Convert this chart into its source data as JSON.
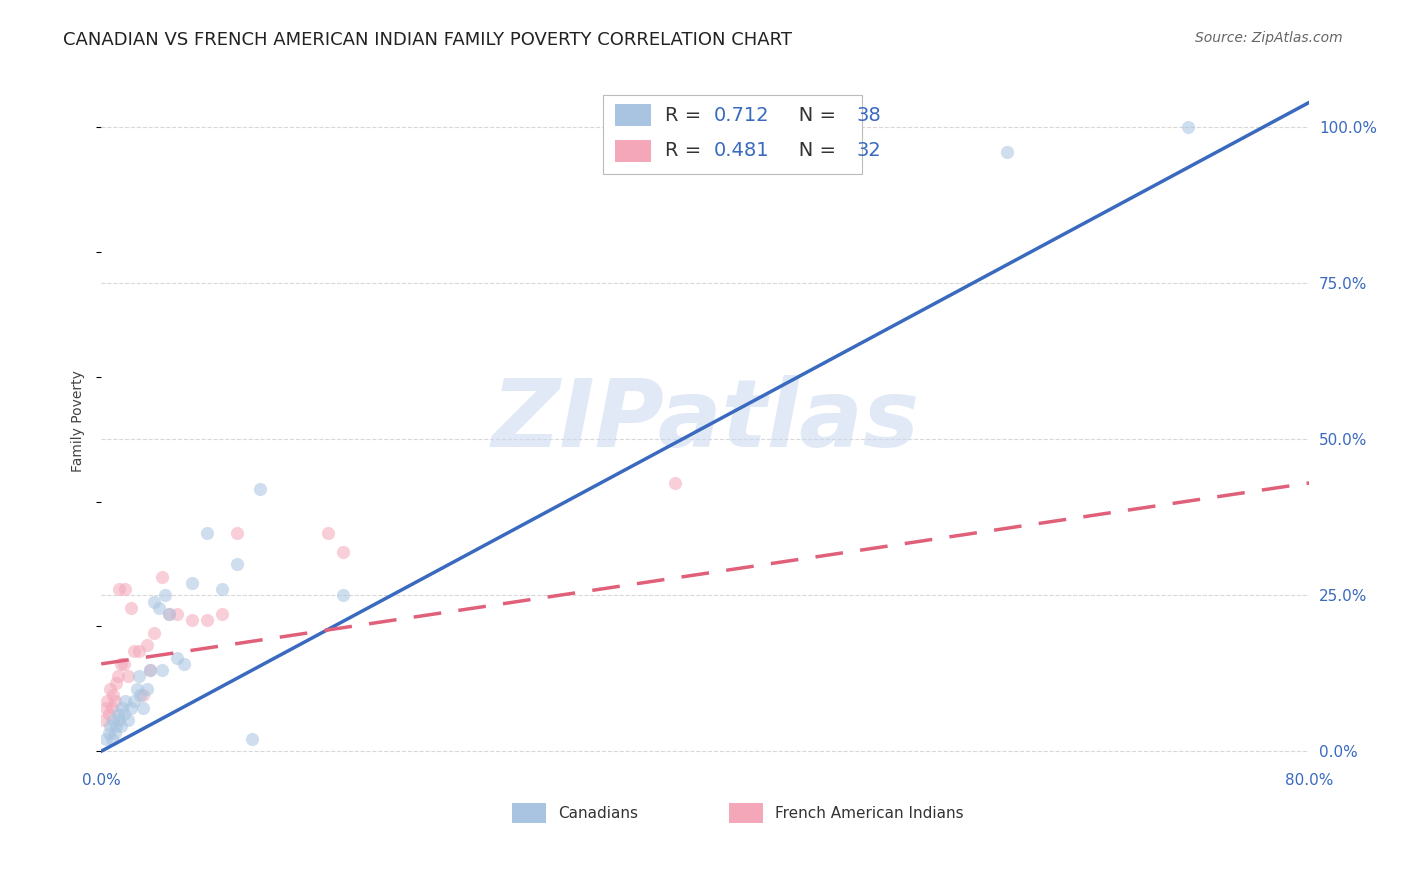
{
  "title": "CANADIAN VS FRENCH AMERICAN INDIAN FAMILY POVERTY CORRELATION CHART",
  "source": "Source: ZipAtlas.com",
  "ylabel": "Family Poverty",
  "xlim": [
    0.0,
    0.8
  ],
  "ylim": [
    -0.02,
    1.08
  ],
  "canadians_color": "#a8c4e0",
  "french_color": "#f4a7b9",
  "line_canadian_color": "#3a6abf",
  "line_french_color": "#e0607a",
  "canadians_x": [
    0.003,
    0.005,
    0.006,
    0.007,
    0.008,
    0.009,
    0.01,
    0.011,
    0.012,
    0.013,
    0.014,
    0.015,
    0.016,
    0.018,
    0.02,
    0.022,
    0.024,
    0.025,
    0.026,
    0.028,
    0.03,
    0.032,
    0.035,
    0.038,
    0.04,
    0.042,
    0.045,
    0.05,
    0.055,
    0.06,
    0.07,
    0.08,
    0.09,
    0.1,
    0.105,
    0.16,
    0.6,
    0.72
  ],
  "canadians_y": [
    0.02,
    0.03,
    0.04,
    0.02,
    0.05,
    0.03,
    0.04,
    0.06,
    0.05,
    0.04,
    0.07,
    0.06,
    0.08,
    0.05,
    0.07,
    0.08,
    0.1,
    0.12,
    0.09,
    0.07,
    0.1,
    0.13,
    0.24,
    0.23,
    0.13,
    0.25,
    0.22,
    0.15,
    0.14,
    0.27,
    0.35,
    0.26,
    0.3,
    0.02,
    0.42,
    0.25,
    0.96,
    1.0
  ],
  "french_x": [
    0.002,
    0.003,
    0.004,
    0.005,
    0.006,
    0.007,
    0.008,
    0.009,
    0.01,
    0.011,
    0.012,
    0.013,
    0.015,
    0.016,
    0.018,
    0.02,
    0.022,
    0.025,
    0.028,
    0.03,
    0.032,
    0.035,
    0.04,
    0.045,
    0.05,
    0.06,
    0.07,
    0.08,
    0.09,
    0.15,
    0.16,
    0.38
  ],
  "french_y": [
    0.05,
    0.07,
    0.08,
    0.06,
    0.1,
    0.07,
    0.09,
    0.08,
    0.11,
    0.12,
    0.26,
    0.14,
    0.14,
    0.26,
    0.12,
    0.23,
    0.16,
    0.16,
    0.09,
    0.17,
    0.13,
    0.19,
    0.28,
    0.22,
    0.22,
    0.21,
    0.21,
    0.22,
    0.35,
    0.35,
    0.32,
    0.43
  ],
  "canadian_line_x": [
    0.0,
    0.8
  ],
  "canadian_line_y": [
    0.0,
    1.04
  ],
  "french_line_x": [
    0.0,
    0.8
  ],
  "french_line_y": [
    0.14,
    0.43
  ],
  "background_color": "#ffffff",
  "grid_color": "#d8d8d8",
  "title_fontsize": 13,
  "source_fontsize": 10,
  "label_fontsize": 10,
  "tick_color": "#3a6abf",
  "tick_fontsize": 11,
  "legend_fontsize": 14,
  "scatter_size": 90,
  "scatter_alpha": 0.55,
  "line_width": 2.5,
  "yticks": [
    0.0,
    0.25,
    0.5,
    0.75,
    1.0
  ],
  "ytick_labels": [
    "0.0%",
    "25.0%",
    "50.0%",
    "75.0%",
    "100.0%"
  ],
  "xticks": [
    0.0,
    0.8
  ],
  "xtick_labels": [
    "0.0%",
    "80.0%"
  ],
  "watermark_text": "ZIPatlas",
  "watermark_color": "#c8d8ee",
  "legend_r1_val": "0.712",
  "legend_r1_n": "38",
  "legend_r2_val": "0.481",
  "legend_r2_n": "32",
  "legend_text_color": "#3a6abf",
  "legend_label_color": "#333333",
  "bottom_legend_canadians": "Canadians",
  "bottom_legend_french": "French American Indians"
}
